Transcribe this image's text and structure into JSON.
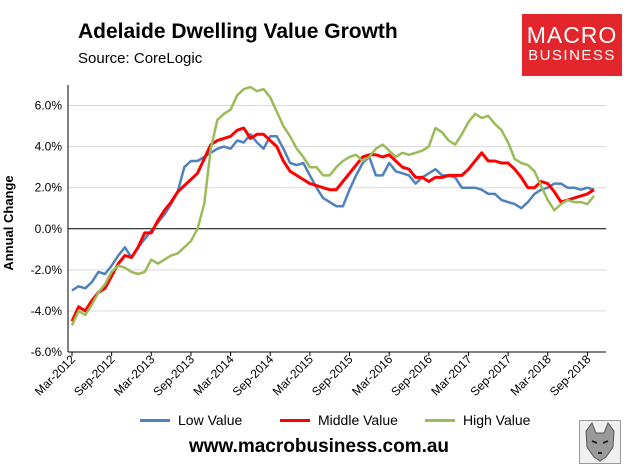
{
  "title": "Adelaide Dwelling Value Growth",
  "subtitle": "Source: CoreLogic",
  "logo": {
    "line1": "MACRO",
    "line2": "BUSINESS"
  },
  "website": "www.macrobusiness.com.au",
  "colors": {
    "low": "#4f81bd",
    "middle": "#ff0000",
    "high": "#9bbb59",
    "brand": "#e3262b"
  },
  "chart_data": {
    "type": "line",
    "title": "Adelaide Dwelling Value Growth",
    "ylabel": "Annual Change",
    "xlabel": "",
    "ylim": [
      -6,
      7
    ],
    "yticks": [
      -6,
      -4,
      -2,
      0,
      2,
      4,
      6
    ],
    "ytick_labels": [
      "-6.0%",
      "-4.0%",
      "-2.0%",
      "0.0%",
      "2.0%",
      "4.0%",
      "6.0%"
    ],
    "x_start": "Mar-2012",
    "x_end": "Dec-2018",
    "xtick_labels": [
      "Mar-2012",
      "Sep-2012",
      "Mar-2013",
      "Sep-2013",
      "Mar-2014",
      "Sep-2014",
      "Mar-2015",
      "Sep-2015",
      "Mar-2016",
      "Sep-2016",
      "Mar-2017",
      "Sep-2017",
      "Mar-2018",
      "Sep-2018"
    ],
    "legend_position": "bottom",
    "series": [
      {
        "name": "Low Value",
        "color": "#4f81bd",
        "values": [
          -3.0,
          -2.8,
          -2.9,
          -2.6,
          -2.1,
          -2.2,
          -1.8,
          -1.3,
          -0.9,
          -1.4,
          -0.9,
          -0.5,
          -0.1,
          0.3,
          0.7,
          1.2,
          1.8,
          3.0,
          3.3,
          3.3,
          3.5,
          3.7,
          3.9,
          4.0,
          3.9,
          4.3,
          4.2,
          4.6,
          4.2,
          3.9,
          4.5,
          4.5,
          3.9,
          3.2,
          3.1,
          3.2,
          2.6,
          2.0,
          1.5,
          1.3,
          1.1,
          1.1,
          1.9,
          2.6,
          3.2,
          3.5,
          2.6,
          2.6,
          3.2,
          2.8,
          2.7,
          2.6,
          2.2,
          2.5,
          2.7,
          2.9,
          2.6,
          2.6,
          2.5,
          2.0,
          2.0,
          2.0,
          1.9,
          1.7,
          1.7,
          1.4,
          1.3,
          1.2,
          1.0,
          1.3,
          1.7,
          1.9,
          2.0,
          2.2,
          2.2,
          2.0,
          2.0,
          1.9,
          2.0,
          1.9
        ]
      },
      {
        "name": "Middle Value",
        "color": "#ff0000",
        "values": [
          -4.5,
          -3.8,
          -4.0,
          -3.5,
          -3.1,
          -2.9,
          -2.3,
          -1.7,
          -1.3,
          -1.4,
          -0.9,
          -0.2,
          -0.2,
          0.4,
          0.9,
          1.3,
          1.8,
          2.1,
          2.4,
          2.7,
          3.4,
          4.1,
          4.3,
          4.4,
          4.5,
          4.8,
          4.9,
          4.4,
          4.6,
          4.6,
          4.3,
          4.0,
          3.3,
          2.8,
          2.6,
          2.4,
          2.2,
          2.1,
          2.0,
          1.9,
          1.9,
          2.3,
          2.7,
          3.1,
          3.5,
          3.6,
          3.6,
          3.5,
          3.6,
          3.3,
          3.0,
          2.9,
          2.5,
          2.5,
          2.3,
          2.5,
          2.5,
          2.6,
          2.6,
          2.6,
          2.9,
          3.3,
          3.7,
          3.3,
          3.3,
          3.2,
          3.2,
          2.9,
          2.5,
          2.0,
          2.0,
          2.3,
          2.2,
          1.8,
          1.3,
          1.4,
          1.5,
          1.6,
          1.7,
          1.9
        ]
      },
      {
        "name": "High Value",
        "color": "#9bbb59",
        "values": [
          -4.7,
          -4.0,
          -4.2,
          -3.7,
          -3.1,
          -2.7,
          -2.1,
          -1.8,
          -1.9,
          -2.1,
          -2.2,
          -2.1,
          -1.5,
          -1.7,
          -1.5,
          -1.3,
          -1.2,
          -0.9,
          -0.6,
          0.0,
          1.2,
          3.9,
          5.3,
          5.6,
          5.8,
          6.5,
          6.8,
          6.9,
          6.7,
          6.8,
          6.4,
          5.7,
          5.0,
          4.5,
          3.9,
          3.5,
          3.0,
          3.0,
          2.6,
          2.6,
          3.0,
          3.3,
          3.5,
          3.6,
          3.3,
          3.5,
          3.9,
          4.1,
          3.8,
          3.5,
          3.7,
          3.6,
          3.7,
          3.8,
          4.0,
          4.9,
          4.7,
          4.3,
          4.1,
          4.6,
          5.2,
          5.6,
          5.4,
          5.5,
          5.1,
          4.8,
          4.2,
          3.4,
          3.2,
          3.1,
          2.8,
          2.1,
          1.4,
          0.9,
          1.2,
          1.4,
          1.3,
          1.3,
          1.2,
          1.6
        ]
      }
    ]
  }
}
